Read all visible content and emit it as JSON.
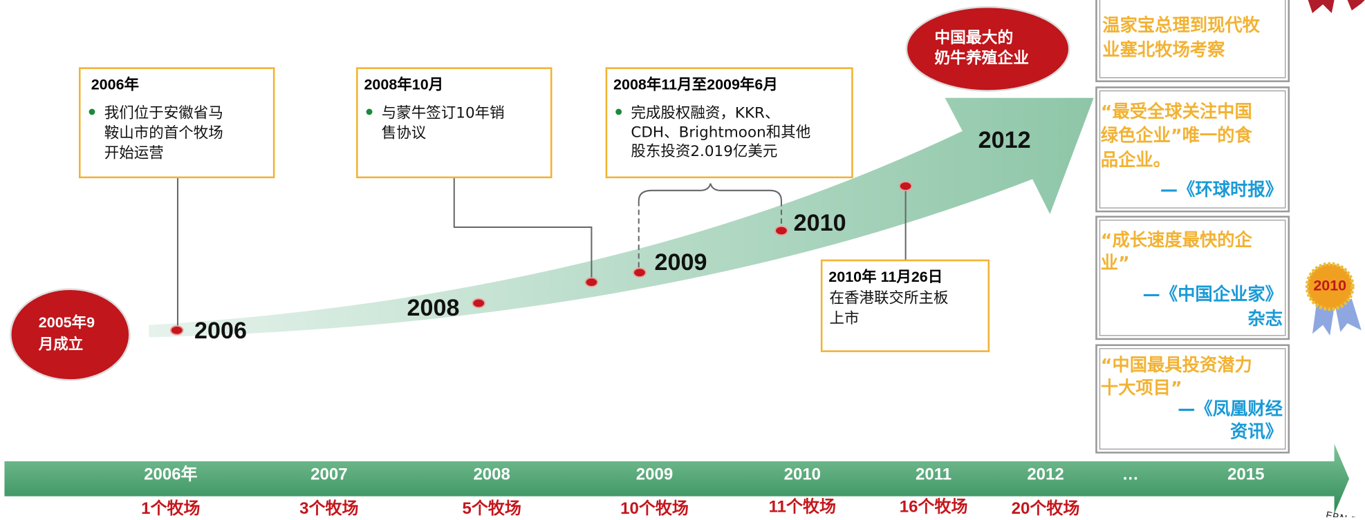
{
  "start": {
    "lines": [
      "2005年9",
      "月成立"
    ]
  },
  "curve_years": [
    "2006",
    "2008",
    "2009",
    "2010",
    "2012"
  ],
  "events": [
    {
      "title": "2006年",
      "lines": [
        "我们位于安徽省马",
        "鞍山市的首个牧场",
        "开始运营"
      ]
    },
    {
      "title": "2008年10月",
      "lines": [
        "与蒙牛签订10年销",
        "售协议"
      ]
    },
    {
      "title": "2008年11月至2009年6月",
      "lines": [
        "完成股权融资，KKR、",
        "CDH、Brightmoon和其他",
        "股东投资2.019亿美元"
      ]
    },
    {
      "title": "2010年 11月26日",
      "lines": [
        "在香港联交所主板",
        "上市"
      ]
    }
  ],
  "highlight": {
    "lines": [
      "中国最大的",
      "奶牛养殖企业"
    ]
  },
  "honors": [
    {
      "lines": [
        "温家宝总理到现代牧",
        "业塞北牧场考察"
      ]
    },
    {
      "lines": [
        "“最受全球关注中国",
        "绿色企业”唯一的食",
        "品企业。"
      ],
      "source": [
        "—《环球时报》"
      ]
    },
    {
      "lines": [
        "“成长速度最快的企",
        "业”"
      ],
      "source": [
        "—《中国企业家》",
        "杂志"
      ]
    },
    {
      "lines": [
        "“中国最具投资潜力",
        "十大项目”"
      ],
      "source": [
        "—《凤凰财经",
        "资讯》"
      ]
    }
  ],
  "badge": "2010",
  "logo_fragment": "ERN FAR",
  "timeline": {
    "years": [
      "2006年",
      "2007",
      "2008",
      "2009",
      "2010",
      "2011",
      "2012",
      "…",
      "2015"
    ],
    "farms": [
      "1个牧场",
      "3个牧场",
      "5个牧场",
      "10个牧场",
      "11个牧场",
      "16个牧场",
      "20个牧场"
    ]
  }
}
